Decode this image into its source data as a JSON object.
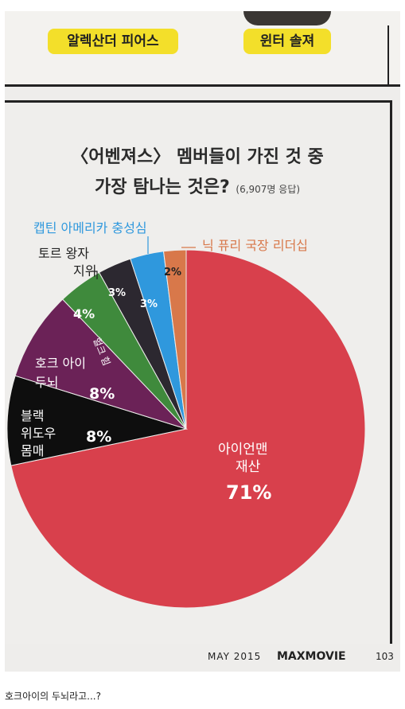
{
  "top": {
    "tags": [
      "알렉산더 피어스",
      "윈터 솔져"
    ]
  },
  "chart_data": {
    "type": "pie",
    "title": "〈어벤져스〉 멤버들이 가진 것 중",
    "subtitle": "가장 탐나는 것은?",
    "respondents": "(6,907명 응답)",
    "slices": [
      {
        "name": "아이언맨 재산",
        "value": 71,
        "pct_label": "71%",
        "color": "#d8404c"
      },
      {
        "name": "블랙 위도우 몸매",
        "value": 8,
        "pct_label": "8%",
        "color": "#0e0e0e"
      },
      {
        "name": "호크 아이 두뇌",
        "value": 8,
        "pct_label": "8%",
        "color": "#6b2257"
      },
      {
        "name": "헐크 힘",
        "value": 4,
        "pct_label": "4%",
        "color": "#3f8a3c"
      },
      {
        "name": "토르 왕자 지위",
        "value": 3,
        "pct_label": "3%",
        "color": "#2c2830"
      },
      {
        "name": "캡틴 아메리카 충성심",
        "value": 3,
        "pct_label": "3%",
        "color": "#2f98dd"
      },
      {
        "name": "닉 퓨리 국장 리더십",
        "value": 2,
        "pct_label": "2%",
        "color": "#d8784a"
      }
    ]
  },
  "labels": {
    "ironman_l1": "아이언맨",
    "ironman_l2": "재산",
    "widow_l1": "블랙",
    "widow_l2": "위도우",
    "widow_l3": "몸매",
    "hawkeye_l1": "호크 아이",
    "hawkeye_l2": "두뇌",
    "hulk": "헐크 힘",
    "thor_l1": "토르 왕자",
    "thor_l2": "지위",
    "cap": "캡틴 아메리카 충성심",
    "fury": "닉 퓨리 국장 리더십"
  },
  "footer": {
    "month": "MAY 2015",
    "brand": "MAXMOVIE",
    "page": "103"
  },
  "caption": "호크아이의 두뇌라고...?"
}
